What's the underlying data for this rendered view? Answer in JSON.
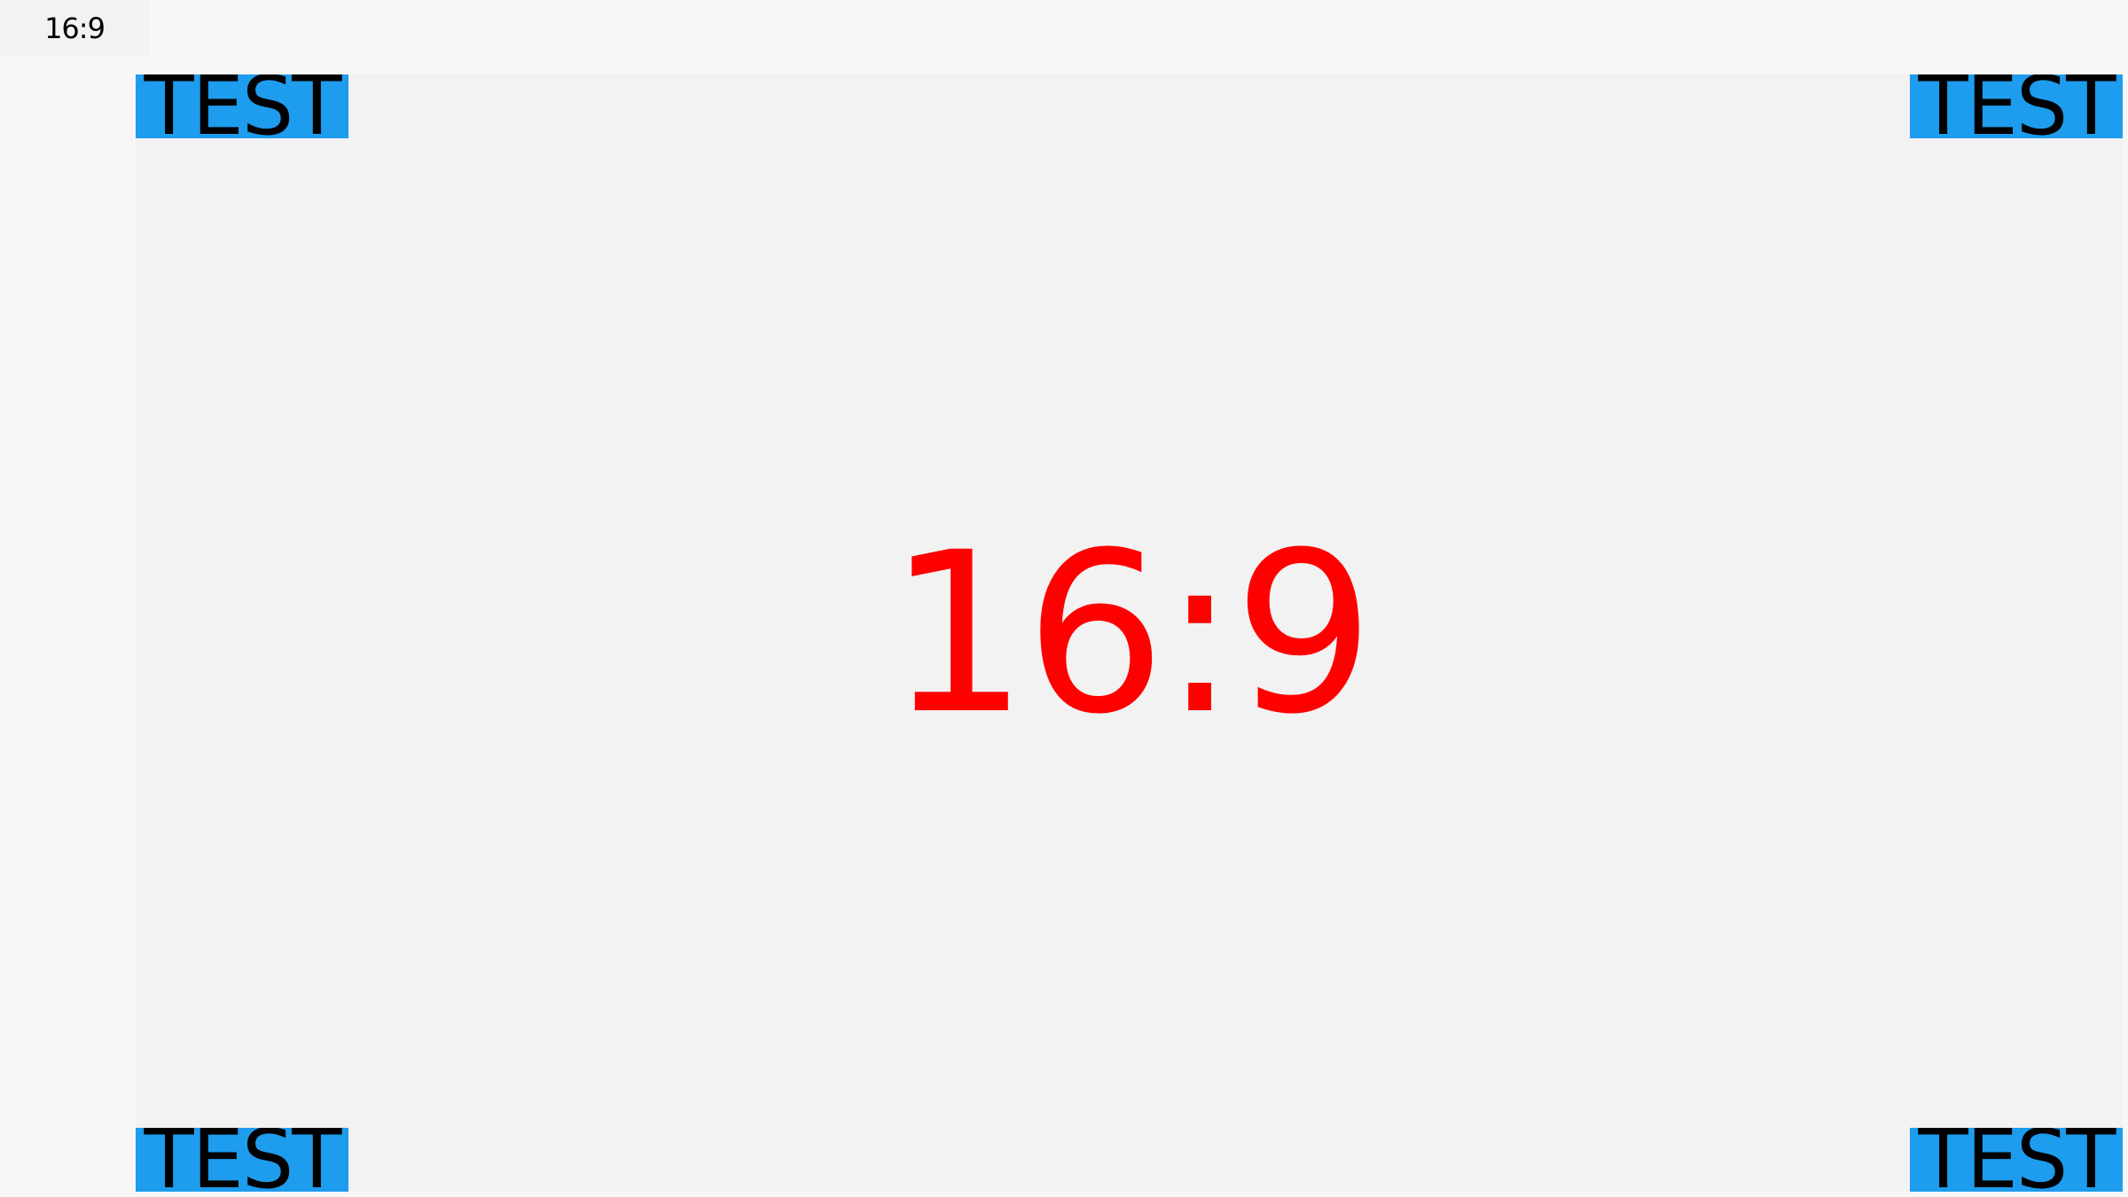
{
  "tab": {
    "label": "16:9"
  },
  "stage": {
    "center_text": "16:9",
    "corner_text": "TEST",
    "colors": {
      "corner_bg": "#1e9ced",
      "center_text": "#ff0000",
      "stage_bg": "#f2f2f2"
    }
  }
}
